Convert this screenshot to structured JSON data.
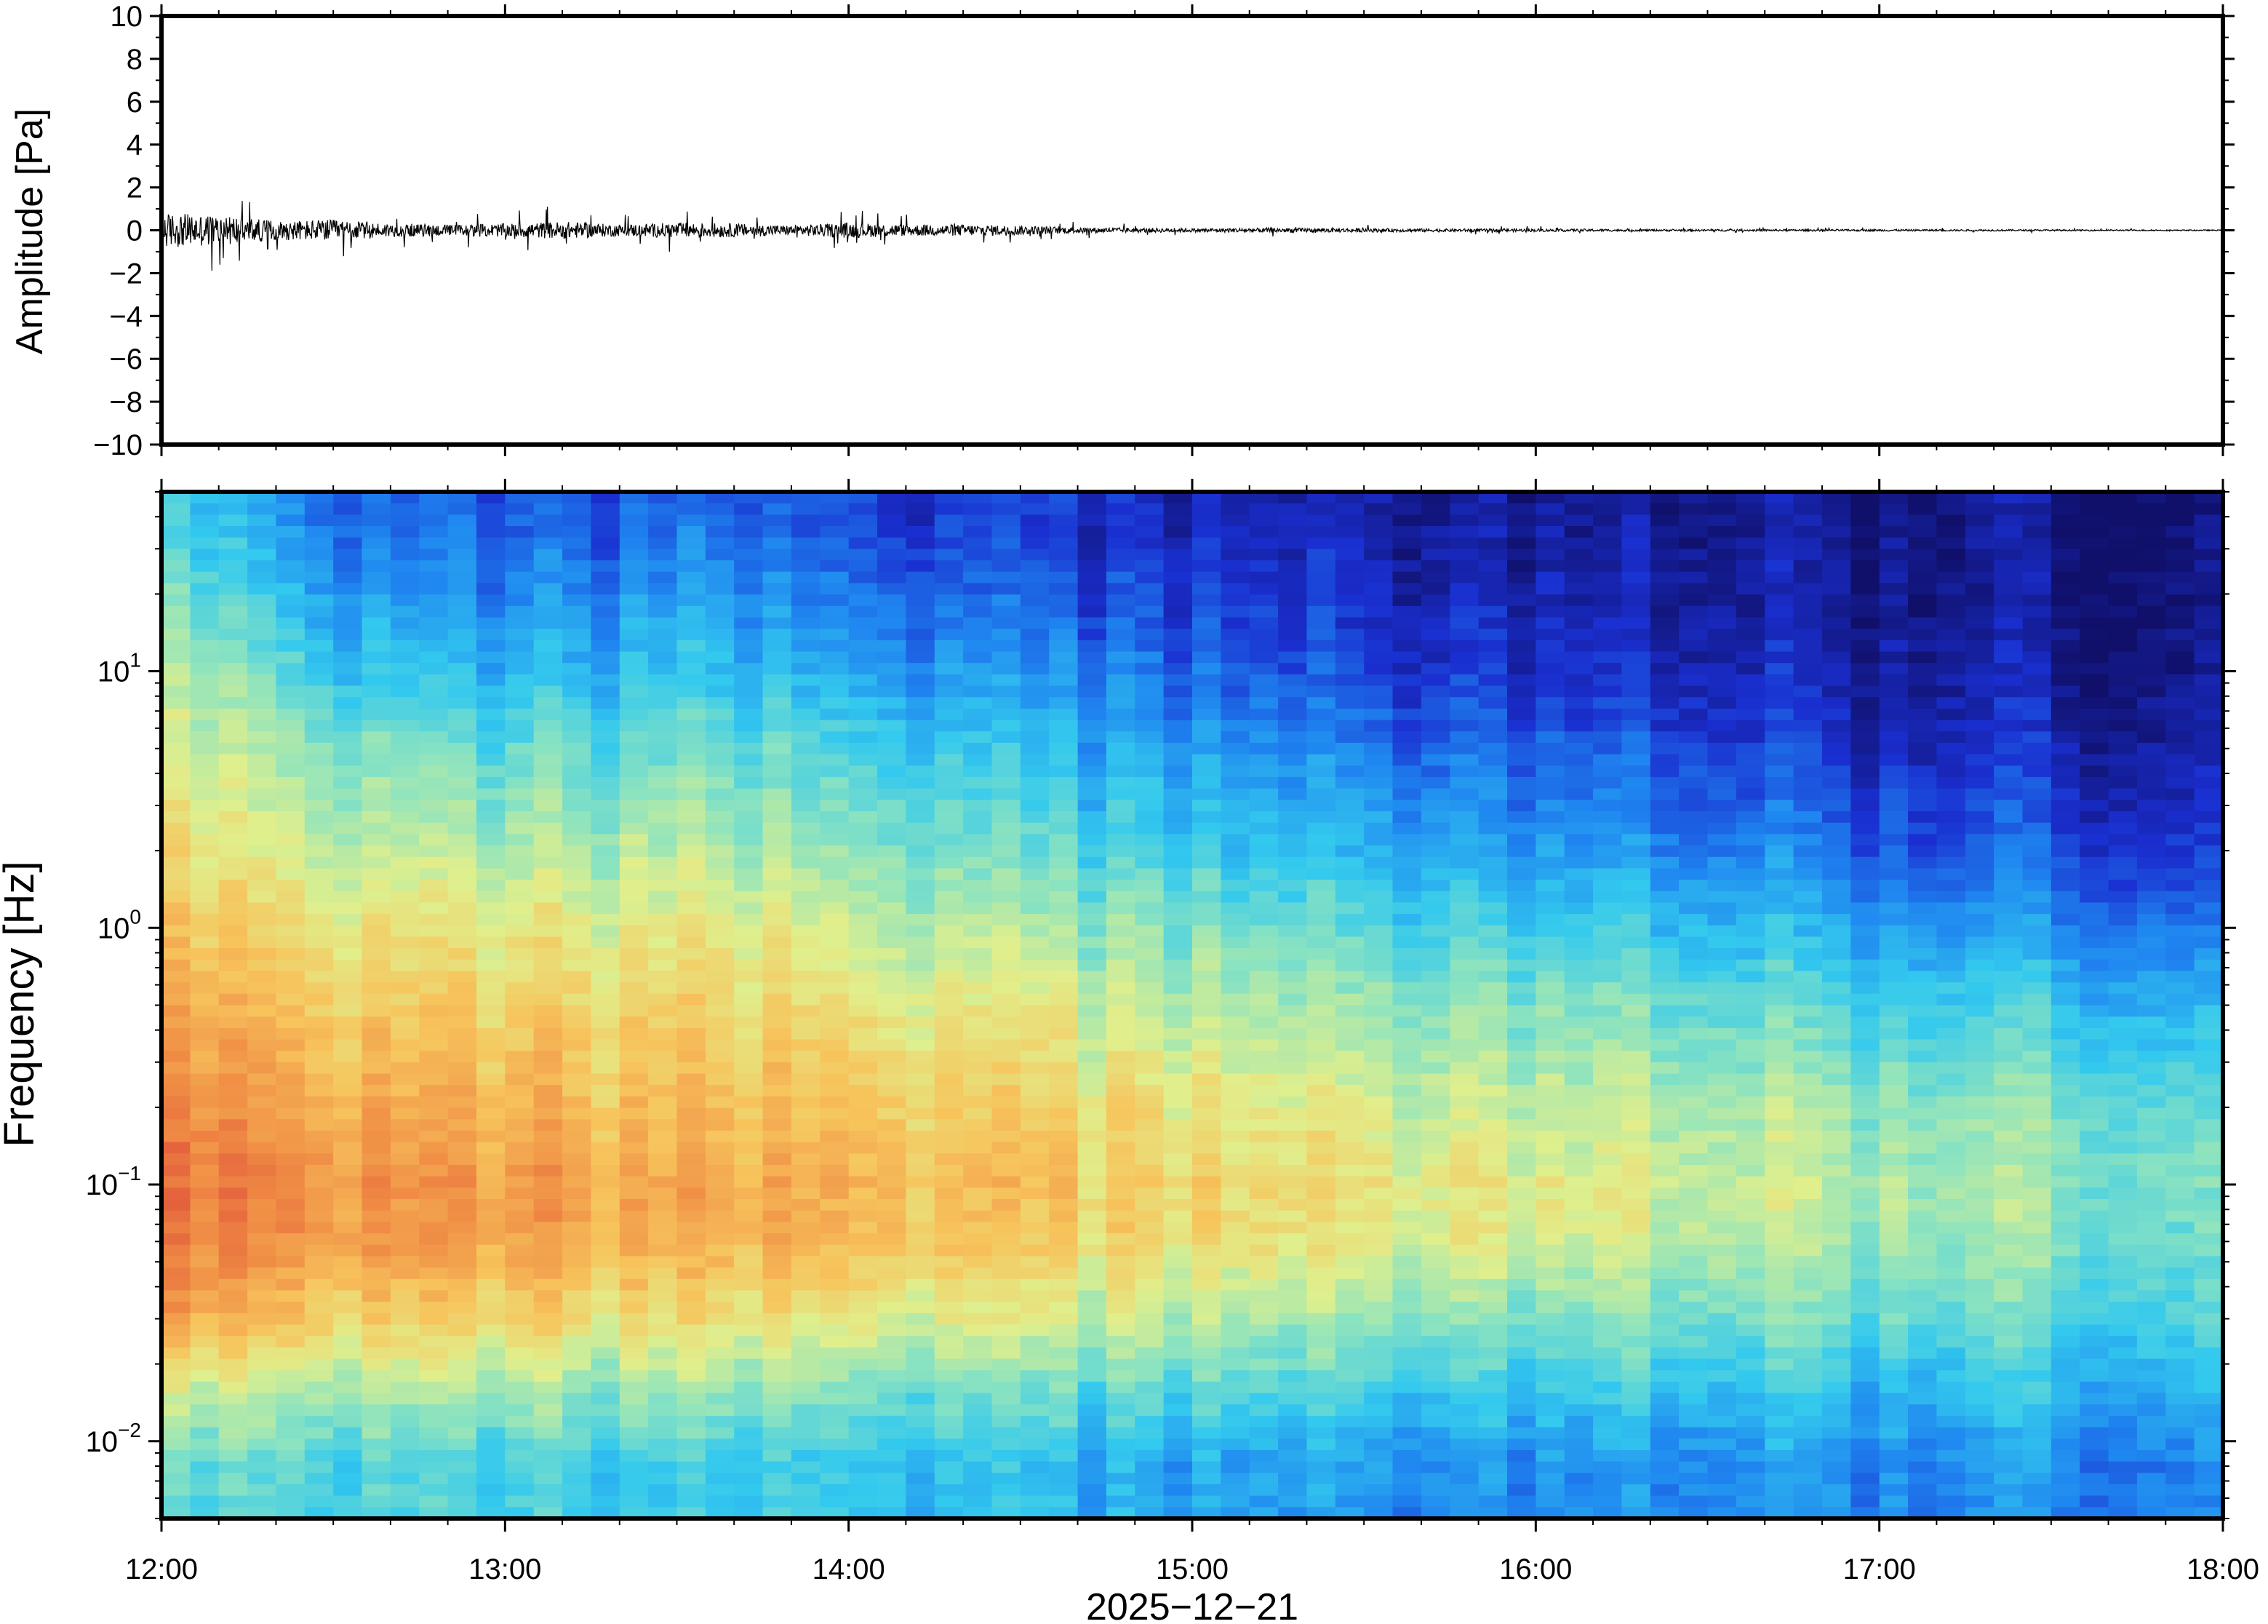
{
  "chart_data": [
    {
      "type": "line",
      "panel": "waveform",
      "ylabel": "Amplitude [Pa]",
      "ylim": [
        -10,
        10
      ],
      "yticks": [
        10,
        8,
        6,
        4,
        2,
        0,
        -2,
        -4,
        -6,
        -8,
        -10
      ],
      "ytick_labels": [
        "10",
        "8",
        "6",
        "4",
        "2",
        "0",
        "−2",
        "−4",
        "−6",
        "−8",
        "−10"
      ],
      "x_range": [
        "12:00",
        "18:00"
      ],
      "series": [
        {
          "color": "#000000",
          "envelope": {
            "time": [
              "12:00",
              "12:10",
              "12:20",
              "12:30",
              "12:40",
              "12:50",
              "13:00",
              "13:10",
              "13:20",
              "13:30",
              "13:40",
              "13:50",
              "14:00",
              "14:10",
              "14:20",
              "14:30",
              "14:40",
              "14:50",
              "15:00",
              "15:15",
              "15:30",
              "15:45",
              "16:00",
              "16:20",
              "16:40",
              "17:00",
              "17:30",
              "18:00"
            ],
            "peak_abs_pa": [
              1.8,
              1.6,
              1.0,
              1.1,
              0.7,
              0.6,
              0.7,
              0.9,
              0.6,
              0.8,
              0.7,
              0.5,
              0.8,
              0.6,
              0.6,
              0.5,
              0.3,
              0.25,
              0.2,
              0.25,
              0.2,
              0.15,
              0.15,
              0.1,
              0.1,
              0.1,
              0.08,
              0.05
            ]
          }
        }
      ]
    },
    {
      "type": "heatmap",
      "panel": "spectrogram",
      "ylabel": "Frequency [Hz]",
      "y_scale": "log",
      "ylim": [
        0.005,
        50
      ],
      "yticks": [
        0.01,
        0.1,
        1,
        10
      ],
      "ytick_labels": [
        {
          "base": "10",
          "exp": "−2"
        },
        {
          "base": "10",
          "exp": "−1"
        },
        {
          "base": "10",
          "exp": "0"
        },
        {
          "base": "10",
          "exp": "1"
        }
      ],
      "xlabel": "2025−12−21",
      "xlim": [
        "12:00",
        "18:00"
      ],
      "xticks": [
        "12:00",
        "13:00",
        "14:00",
        "15:00",
        "16:00",
        "17:00",
        "18:00"
      ],
      "colormap": [
        "#10106a",
        "#1a2fd0",
        "#1f86f0",
        "#33c9ee",
        "#8be3c0",
        "#e0ef8c",
        "#f7c45c",
        "#f08e45",
        "#e0503a"
      ],
      "log_frequency_bands_hz": [
        40,
        20,
        10,
        5,
        2,
        1,
        0.5,
        0.2,
        0.1,
        0.06,
        0.03,
        0.015,
        0.008
      ],
      "time_columns": [
        "12:00",
        "12:30",
        "13:00",
        "13:30",
        "14:00",
        "14:30",
        "15:00",
        "15:30",
        "16:00",
        "16:30",
        "17:00",
        "17:30",
        "18:00"
      ],
      "relative_power_0_to_1": [
        [
          0.4,
          0.22,
          0.18,
          0.2,
          0.15,
          0.12,
          0.1,
          0.08,
          0.06,
          0.05,
          0.04,
          0.03,
          0.02
        ],
        [
          0.48,
          0.3,
          0.25,
          0.28,
          0.22,
          0.18,
          0.14,
          0.11,
          0.09,
          0.07,
          0.05,
          0.04,
          0.03
        ],
        [
          0.55,
          0.38,
          0.33,
          0.36,
          0.3,
          0.26,
          0.2,
          0.16,
          0.13,
          0.1,
          0.07,
          0.06,
          0.04
        ],
        [
          0.62,
          0.48,
          0.44,
          0.46,
          0.4,
          0.35,
          0.28,
          0.24,
          0.2,
          0.16,
          0.12,
          0.1,
          0.08
        ],
        [
          0.68,
          0.58,
          0.55,
          0.56,
          0.5,
          0.45,
          0.38,
          0.34,
          0.3,
          0.26,
          0.2,
          0.17,
          0.14
        ],
        [
          0.74,
          0.66,
          0.64,
          0.64,
          0.58,
          0.54,
          0.48,
          0.44,
          0.4,
          0.36,
          0.3,
          0.27,
          0.22
        ],
        [
          0.8,
          0.73,
          0.71,
          0.7,
          0.66,
          0.62,
          0.56,
          0.53,
          0.5,
          0.46,
          0.42,
          0.38,
          0.34
        ],
        [
          0.88,
          0.8,
          0.78,
          0.76,
          0.73,
          0.7,
          0.65,
          0.62,
          0.59,
          0.56,
          0.52,
          0.49,
          0.45
        ],
        [
          0.92,
          0.86,
          0.84,
          0.8,
          0.78,
          0.74,
          0.7,
          0.67,
          0.64,
          0.6,
          0.56,
          0.52,
          0.48
        ],
        [
          0.9,
          0.84,
          0.82,
          0.78,
          0.76,
          0.72,
          0.68,
          0.65,
          0.62,
          0.58,
          0.55,
          0.5,
          0.46
        ],
        [
          0.82,
          0.72,
          0.7,
          0.66,
          0.64,
          0.6,
          0.56,
          0.52,
          0.5,
          0.48,
          0.46,
          0.44,
          0.42
        ],
        [
          0.58,
          0.54,
          0.52,
          0.5,
          0.47,
          0.45,
          0.42,
          0.4,
          0.38,
          0.36,
          0.35,
          0.34,
          0.33
        ],
        [
          0.44,
          0.42,
          0.4,
          0.38,
          0.36,
          0.34,
          0.3,
          0.29,
          0.28,
          0.27,
          0.27,
          0.26,
          0.26
        ]
      ]
    }
  ]
}
